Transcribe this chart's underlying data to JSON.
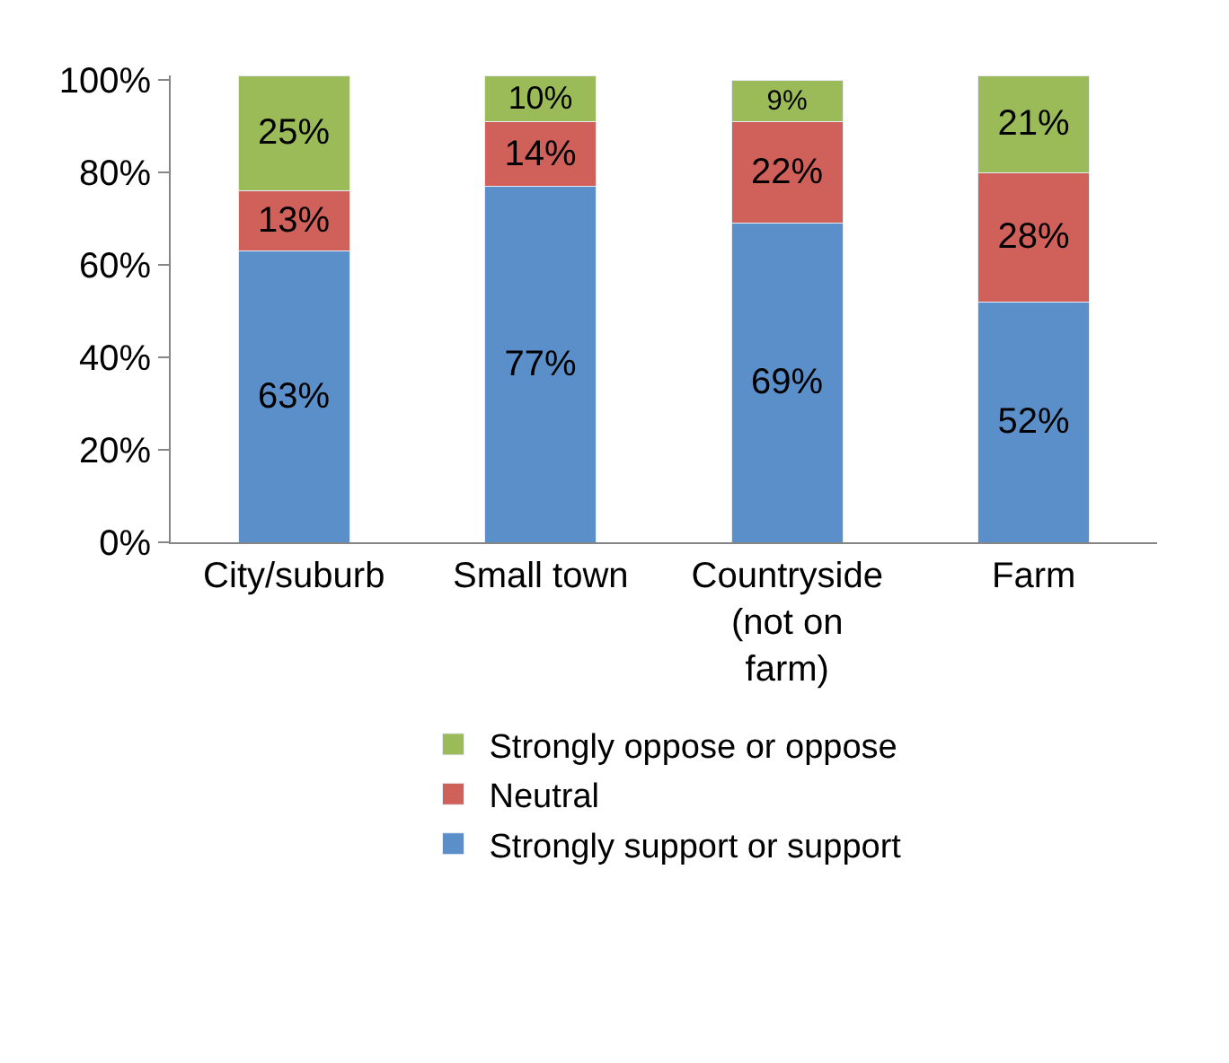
{
  "chart_data": {
    "type": "bar",
    "stacked": true,
    "categories": [
      "City/suburb",
      "Small town",
      "Countryside\n(not on\nfarm)",
      "Farm"
    ],
    "series": [
      {
        "name": "Strongly support or support",
        "color": "#5b8fc9",
        "values": [
          63,
          77,
          69,
          52
        ],
        "value_labels": [
          "63%",
          "77%",
          "69%",
          "52%"
        ]
      },
      {
        "name": "Neutral",
        "color": "#d0605a",
        "values": [
          13,
          14,
          22,
          28
        ],
        "value_labels": [
          "13%",
          "14%",
          "22%",
          "28%"
        ]
      },
      {
        "name": "Strongly oppose or oppose",
        "color": "#9bbb59",
        "values": [
          25,
          10,
          9,
          21
        ],
        "value_labels": [
          "25%",
          "10%",
          "9%",
          "21%"
        ]
      }
    ],
    "ylim": [
      0,
      101
    ],
    "yticks": [
      {
        "value": 0,
        "label": "0%"
      },
      {
        "value": 20,
        "label": "20%"
      },
      {
        "value": 40,
        "label": "40%"
      },
      {
        "value": 60,
        "label": "60%"
      },
      {
        "value": 80,
        "label": "80%"
      },
      {
        "value": 100,
        "label": "100%"
      }
    ],
    "legend": "bottom"
  }
}
